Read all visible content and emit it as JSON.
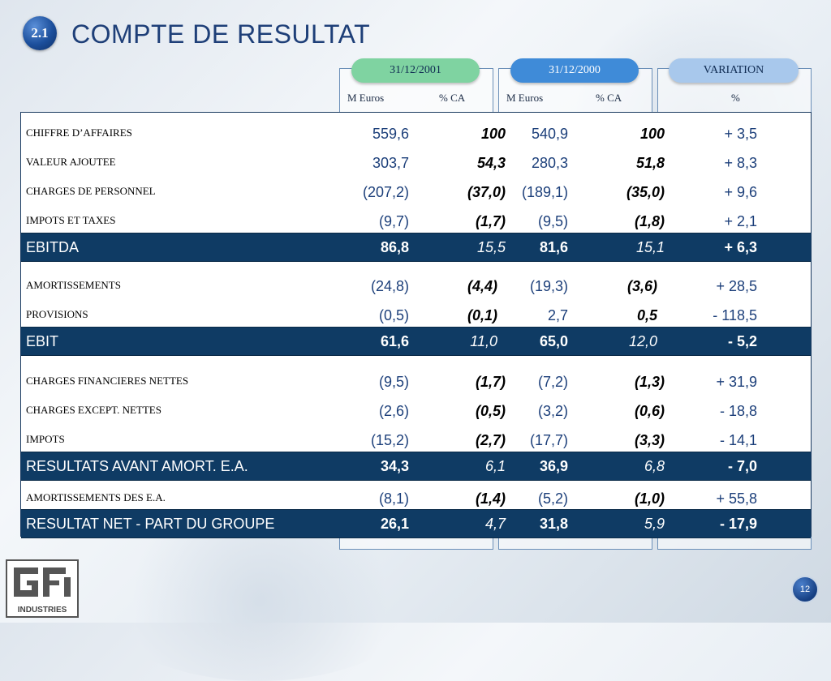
{
  "header": {
    "section_number": "2.1",
    "title": "COMPTE DE RESULTAT"
  },
  "columns": {
    "tabs": [
      "31/12/2001",
      "31/12/2000",
      "VARIATION"
    ],
    "subheaders": [
      "M Euros",
      "% CA",
      "M Euros",
      "% CA",
      "%"
    ]
  },
  "rows": [
    {
      "label": "CHIFFRE D’AFFAIRES",
      "v": [
        "559,6",
        "100",
        "540,9",
        "100",
        "+ 3,5"
      ]
    },
    {
      "label": "VALEUR AJOUTEE",
      "v": [
        "303,7",
        "54,3",
        "280,3",
        "51,8",
        "+ 8,3"
      ]
    },
    {
      "label": "CHARGES DE PERSONNEL",
      "v": [
        "(207,2)",
        "(37,0)",
        "(189,1)",
        "(35,0)",
        "+ 9,6"
      ]
    },
    {
      "label": "IMPOTS ET TAXES",
      "v": [
        "(9,7)",
        "(1,7)",
        "(9,5)",
        "(1,8)",
        "+ 2,1"
      ]
    },
    {
      "label": "EBITDA",
      "v": [
        "86,8",
        "15,5",
        "81,6",
        "15,1",
        "+ 6,3"
      ]
    },
    {
      "label": "AMORTISSEMENTS",
      "v": [
        "(24,8)",
        "(4,4)",
        "(19,3)",
        "(3,6)",
        "+ 28,5"
      ]
    },
    {
      "label": "PROVISIONS",
      "v": [
        "(0,5)",
        "(0,1)",
        "2,7",
        "0,5",
        "- 118,5"
      ]
    },
    {
      "label": "EBIT",
      "v": [
        "61,6",
        "11,0",
        "65,0",
        "12,0",
        "- 5,2"
      ]
    },
    {
      "label": "CHARGES FINANCIERES NETTES",
      "v": [
        "(9,5)",
        "(1,7)",
        "(7,2)",
        "(1,3)",
        "+ 31,9"
      ]
    },
    {
      "label": "CHARGES EXCEPT. NETTES",
      "v": [
        "(2,6)",
        "(0,5)",
        "(3,2)",
        "(0,6)",
        "- 18,8"
      ]
    },
    {
      "label": "IMPOTS",
      "v": [
        "(15,2)",
        "(2,7)",
        "(17,7)",
        "(3,3)",
        "- 14,1"
      ]
    },
    {
      "label": "RESULTATS AVANT AMORT. E.A.",
      "v": [
        "34,3",
        "6,1",
        "36,9",
        "6,8",
        "- 7,0"
      ]
    },
    {
      "label": "AMORTISSEMENTS DES E.A.",
      "v": [
        "(8,1)",
        "(1,4)",
        "(5,2)",
        "(1,0)",
        "+ 55,8"
      ]
    },
    {
      "label": "RESULTAT NET - PART DU GROUPE",
      "v": [
        "26,1",
        "4,7",
        "31,8",
        "5,9",
        "- 17,9"
      ]
    }
  ],
  "footer": {
    "logo_text": "INDUSTRIES",
    "page_number": "12"
  },
  "colors": {
    "title_blue": "#1e3f78",
    "highlight_row": "#0f3b64",
    "tab_2001": "#7fd3a1",
    "tab_2000": "#3f8bd8",
    "tab_variation": "#a8c8ec"
  }
}
